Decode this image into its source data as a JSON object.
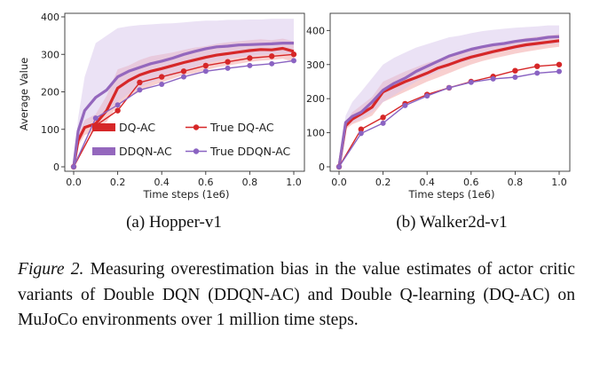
{
  "colors": {
    "dq": "#d62728",
    "ddqn": "#9467bd",
    "dq_band": "#f2a7a7",
    "ddqn_band": "#d8c6ec",
    "true_dq": "#d62728",
    "true_ddqn": "#8a63c2"
  },
  "legend": [
    "DQ-AC",
    "DDQN-AC",
    "True DQ-AC",
    "True DDQN-AC"
  ],
  "caption": {
    "label": "Figure 2.",
    "text": "Measuring overestimation bias in the value estimates of actor critic variants of Double DQN (DDQN-AC) and Double Q-learning (DQ-AC) on MuJoCo environments over 1 million time steps."
  },
  "chart_data": [
    {
      "type": "line",
      "title": "(a) Hopper-v1",
      "xlabel": "Time steps (1e6)",
      "ylabel": "Average Value",
      "xlim": [
        0,
        1.0
      ],
      "ylim": [
        0,
        400
      ],
      "xticks": [
        "0.0",
        "0.2",
        "0.4",
        "0.6",
        "0.8",
        "1.0"
      ],
      "yticks": [
        "0",
        "100",
        "200",
        "300",
        "400"
      ],
      "legend_position": "lower-center",
      "series": [
        {
          "name": "DQ-AC",
          "style": "band",
          "x": [
            0,
            0.02,
            0.05,
            0.1,
            0.15,
            0.2,
            0.25,
            0.3,
            0.35,
            0.4,
            0.45,
            0.5,
            0.55,
            0.6,
            0.65,
            0.7,
            0.75,
            0.8,
            0.85,
            0.9,
            0.95,
            1.0
          ],
          "y": [
            0,
            70,
            105,
            115,
            150,
            210,
            230,
            245,
            255,
            262,
            270,
            278,
            285,
            292,
            298,
            302,
            306,
            310,
            313,
            312,
            316,
            308
          ],
          "low": [
            0,
            55,
            85,
            95,
            120,
            165,
            185,
            200,
            215,
            225,
            235,
            245,
            250,
            258,
            265,
            270,
            275,
            280,
            283,
            285,
            288,
            280
          ],
          "high": [
            0,
            85,
            125,
            140,
            190,
            260,
            270,
            285,
            295,
            300,
            305,
            312,
            318,
            322,
            328,
            332,
            335,
            338,
            340,
            338,
            342,
            335
          ]
        },
        {
          "name": "DDQN-AC",
          "style": "band",
          "x": [
            0,
            0.02,
            0.05,
            0.1,
            0.15,
            0.2,
            0.25,
            0.3,
            0.35,
            0.4,
            0.45,
            0.5,
            0.55,
            0.6,
            0.65,
            0.7,
            0.75,
            0.8,
            0.85,
            0.9,
            0.95,
            1.0
          ],
          "y": [
            0,
            95,
            150,
            185,
            205,
            240,
            255,
            265,
            275,
            282,
            290,
            300,
            308,
            315,
            320,
            322,
            325,
            326,
            327,
            328,
            330,
            330
          ],
          "low": [
            0,
            60,
            100,
            130,
            145,
            175,
            195,
            210,
            225,
            235,
            245,
            255,
            265,
            275,
            282,
            288,
            292,
            295,
            298,
            300,
            302,
            300
          ],
          "high": [
            0,
            130,
            240,
            330,
            350,
            370,
            375,
            378,
            380,
            382,
            383,
            385,
            388,
            390,
            390,
            392,
            392,
            393,
            393,
            395,
            395,
            395
          ]
        },
        {
          "name": "True DQ-AC",
          "style": "markers",
          "x": [
            0,
            0.1,
            0.2,
            0.3,
            0.4,
            0.5,
            0.6,
            0.7,
            0.8,
            0.9,
            1.0
          ],
          "y": [
            0,
            110,
            150,
            225,
            240,
            255,
            270,
            280,
            290,
            295,
            300
          ]
        },
        {
          "name": "True DDQN-AC",
          "style": "markers",
          "x": [
            0,
            0.1,
            0.2,
            0.3,
            0.4,
            0.5,
            0.6,
            0.7,
            0.8,
            0.9,
            1.0
          ],
          "y": [
            0,
            130,
            165,
            205,
            220,
            240,
            255,
            263,
            270,
            275,
            283
          ]
        }
      ]
    },
    {
      "type": "line",
      "title": "(b) Walker2d-v1",
      "xlabel": "Time steps (1e6)",
      "ylabel": "",
      "xlim": [
        0,
        1.0
      ],
      "ylim": [
        0,
        440
      ],
      "xticks": [
        "0.0",
        "0.2",
        "0.4",
        "0.6",
        "0.8",
        "1.0"
      ],
      "yticks": [
        "0",
        "100",
        "200",
        "300",
        "400"
      ],
      "series": [
        {
          "name": "DQ-AC",
          "style": "band",
          "x": [
            0,
            0.03,
            0.06,
            0.1,
            0.15,
            0.2,
            0.25,
            0.3,
            0.35,
            0.4,
            0.45,
            0.5,
            0.55,
            0.6,
            0.65,
            0.7,
            0.75,
            0.8,
            0.85,
            0.9,
            0.95,
            1.0
          ],
          "y": [
            0,
            120,
            140,
            155,
            175,
            220,
            235,
            250,
            262,
            275,
            290,
            300,
            312,
            322,
            330,
            338,
            345,
            352,
            358,
            362,
            366,
            370
          ],
          "low": [
            0,
            110,
            125,
            135,
            150,
            190,
            205,
            220,
            235,
            250,
            262,
            275,
            288,
            300,
            310,
            318,
            325,
            332,
            338,
            343,
            348,
            352
          ],
          "high": [
            0,
            130,
            160,
            180,
            205,
            250,
            265,
            280,
            292,
            305,
            315,
            325,
            335,
            345,
            352,
            360,
            365,
            372,
            378,
            382,
            385,
            390
          ]
        },
        {
          "name": "DDQN-AC",
          "style": "band",
          "x": [
            0,
            0.03,
            0.06,
            0.1,
            0.15,
            0.2,
            0.25,
            0.3,
            0.35,
            0.4,
            0.45,
            0.5,
            0.55,
            0.6,
            0.65,
            0.7,
            0.75,
            0.8,
            0.85,
            0.9,
            0.95,
            1.0
          ],
          "y": [
            0,
            130,
            148,
            160,
            190,
            225,
            245,
            260,
            280,
            295,
            310,
            325,
            335,
            345,
            352,
            358,
            362,
            368,
            372,
            375,
            380,
            382
          ],
          "low": [
            0,
            115,
            130,
            140,
            160,
            190,
            210,
            230,
            250,
            265,
            280,
            295,
            305,
            315,
            325,
            332,
            340,
            345,
            350,
            355,
            360,
            362
          ],
          "high": [
            0,
            150,
            190,
            220,
            260,
            300,
            320,
            335,
            350,
            360,
            370,
            380,
            385,
            392,
            398,
            402,
            405,
            408,
            410,
            412,
            415,
            415
          ]
        },
        {
          "name": "True DQ-AC",
          "style": "markers",
          "x": [
            0,
            0.1,
            0.2,
            0.3,
            0.4,
            0.5,
            0.6,
            0.7,
            0.8,
            0.9,
            1.0
          ],
          "y": [
            0,
            110,
            145,
            185,
            212,
            232,
            250,
            265,
            282,
            295,
            300
          ]
        },
        {
          "name": "True DDQN-AC",
          "style": "markers",
          "x": [
            0,
            0.1,
            0.2,
            0.3,
            0.4,
            0.5,
            0.6,
            0.7,
            0.8,
            0.9,
            1.0
          ],
          "y": [
            0,
            98,
            128,
            180,
            208,
            232,
            248,
            258,
            263,
            275,
            280
          ]
        }
      ]
    }
  ]
}
